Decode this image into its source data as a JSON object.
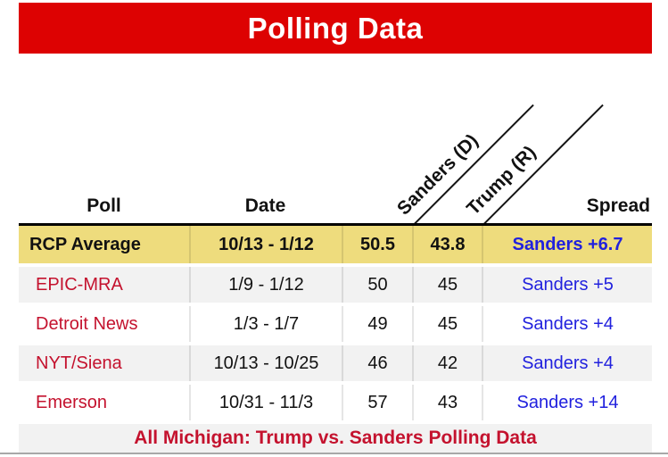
{
  "title": "Polling Data",
  "table": {
    "headers": {
      "poll": "Poll",
      "date": "Date",
      "sanders": "Sanders (D)",
      "trump": "Trump (R)",
      "spread": "Spread"
    },
    "rows": [
      {
        "poll": "RCP Average",
        "date": "10/13 - 1/12",
        "sanders": "50.5",
        "trump": "43.8",
        "spread": "Sanders +6.7"
      },
      {
        "poll": "EPIC-MRA",
        "date": "1/9 - 1/12",
        "sanders": "50",
        "trump": "45",
        "spread": "Sanders +5"
      },
      {
        "poll": "Detroit News",
        "date": "1/3 - 1/7",
        "sanders": "49",
        "trump": "45",
        "spread": "Sanders +4"
      },
      {
        "poll": "NYT/Siena",
        "date": "10/13 - 10/25",
        "sanders": "46",
        "trump": "42",
        "spread": "Sanders +4"
      },
      {
        "poll": "Emerson",
        "date": "10/31 - 11/3",
        "sanders": "57",
        "trump": "43",
        "spread": "Sanders +14"
      }
    ],
    "footer": "All Michigan: Trump vs. Sanders Polling Data"
  },
  "colors": {
    "title_bar": "#dd0202",
    "title_text": "#ffffff",
    "highlight_row": "#eedc7d",
    "alt_row": "#f2f2f2",
    "poll_name_text": "#c4122e",
    "spread_text": "#2121de",
    "footer_text": "#c4122e"
  },
  "chart_data": {
    "type": "table",
    "title": "Polling Data",
    "caption": "All Michigan: Trump vs. Sanders Polling Data",
    "columns": [
      "Poll",
      "Date",
      "Sanders (D)",
      "Trump (R)",
      "Spread"
    ],
    "rows": [
      [
        "RCP Average",
        "10/13 - 1/12",
        50.5,
        43.8,
        "Sanders +6.7"
      ],
      [
        "EPIC-MRA",
        "1/9 - 1/12",
        50,
        45,
        "Sanders +5"
      ],
      [
        "Detroit News",
        "1/3 - 1/7",
        49,
        45,
        "Sanders +4"
      ],
      [
        "NYT/Siena",
        "10/13 - 10/25",
        46,
        42,
        "Sanders +4"
      ],
      [
        "Emerson",
        "10/31 - 11/3",
        57,
        43,
        "Sanders +14"
      ]
    ],
    "highlighted_row": 0
  }
}
